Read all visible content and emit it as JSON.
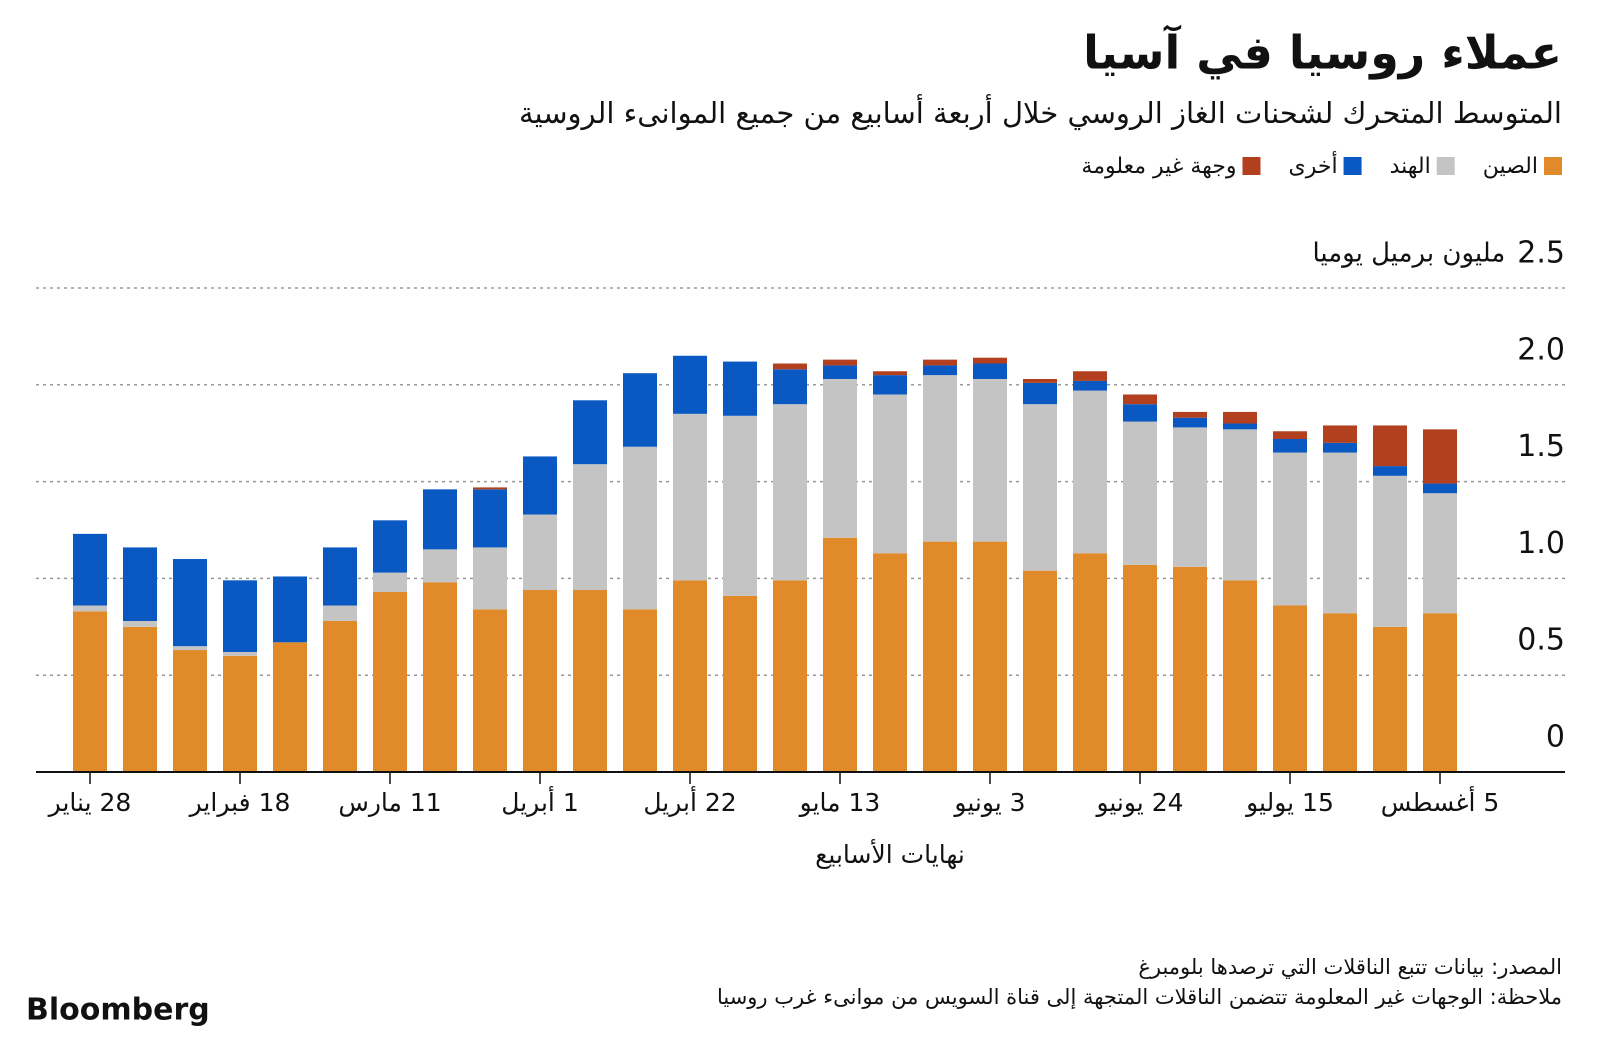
{
  "chart_data": {
    "type": "stacked_bar",
    "title": "عملاء روسيا في آسيا",
    "subtitle": "المتوسط المتحرك لشحنات الغاز الروسي خلال أربعة أسابيع من جميع الموانىء الروسية",
    "y_label": "مليون برميل يوميا",
    "x_label": "نهايات الأسابيع",
    "source": "المصدر: بيانات تتبع الناقلات التي ترصدها بلومبرغ",
    "note": "ملاحظة: الوجهات غير المعلومة تتضمن الناقلات المتجهة إلى قناة السويس من موانىء غرب روسيا",
    "logo": "Bloomberg",
    "categories": [
      "28 يناير",
      null,
      null,
      "18 فبراير",
      null,
      null,
      "11 مارس",
      null,
      null,
      "1 أبريل",
      null,
      null,
      "22 أبريل",
      null,
      null,
      "13 مايو",
      null,
      null,
      "3 يونيو",
      null,
      null,
      "24 يونيو",
      null,
      null,
      "15 يوليو",
      null,
      null,
      "5 أغسطس"
    ],
    "series": [
      {
        "name": "الصين",
        "color": "#e08a2a",
        "values": [
          0.83,
          0.75,
          0.63,
          0.6,
          0.67,
          0.78,
          0.93,
          0.98,
          0.84,
          0.94,
          0.94,
          0.84,
          0.99,
          0.91,
          0.99,
          1.21,
          1.13,
          1.19,
          1.19,
          1.04,
          1.13,
          1.07,
          1.06,
          0.99,
          0.86,
          0.82,
          0.75,
          0.82
        ]
      },
      {
        "name": "الهند",
        "color": "#c4c4c4",
        "values": [
          0.03,
          0.03,
          0.02,
          0.02,
          0,
          0.08,
          0.1,
          0.17,
          0.32,
          0.39,
          0.65,
          0.84,
          0.86,
          0.93,
          0.91,
          0.82,
          0.82,
          0.86,
          0.84,
          0.86,
          0.84,
          0.74,
          0.72,
          0.78,
          0.79,
          0.83,
          0.78,
          0.62
        ]
      },
      {
        "name": "أخرى",
        "color": "#0a58c2",
        "values": [
          0.37,
          0.38,
          0.45,
          0.37,
          0.34,
          0.3,
          0.27,
          0.31,
          0.3,
          0.3,
          0.33,
          0.38,
          0.3,
          0.28,
          0.18,
          0.07,
          0.1,
          0.05,
          0.08,
          0.11,
          0.05,
          0.09,
          0.05,
          0.03,
          0.07,
          0.05,
          0.05,
          0.05
        ]
      },
      {
        "name": "وجهة غير معلومة",
        "color": "#b2401f",
        "values": [
          0,
          0,
          0,
          0,
          0,
          0,
          0,
          0,
          0.01,
          0,
          0,
          0,
          0,
          0,
          0.03,
          0.03,
          0.02,
          0.03,
          0.03,
          0.02,
          0.05,
          0.05,
          0.03,
          0.06,
          0.04,
          0.09,
          0.21,
          0.28
        ]
      }
    ],
    "ylim": [
      0,
      2.5
    ],
    "yticks": [
      0,
      0.5,
      {
        "value": 1,
        "label": "1.0"
      },
      1.5,
      {
        "value": 2,
        "label": "2.0"
      },
      2.5
    ],
    "grid": true
  }
}
